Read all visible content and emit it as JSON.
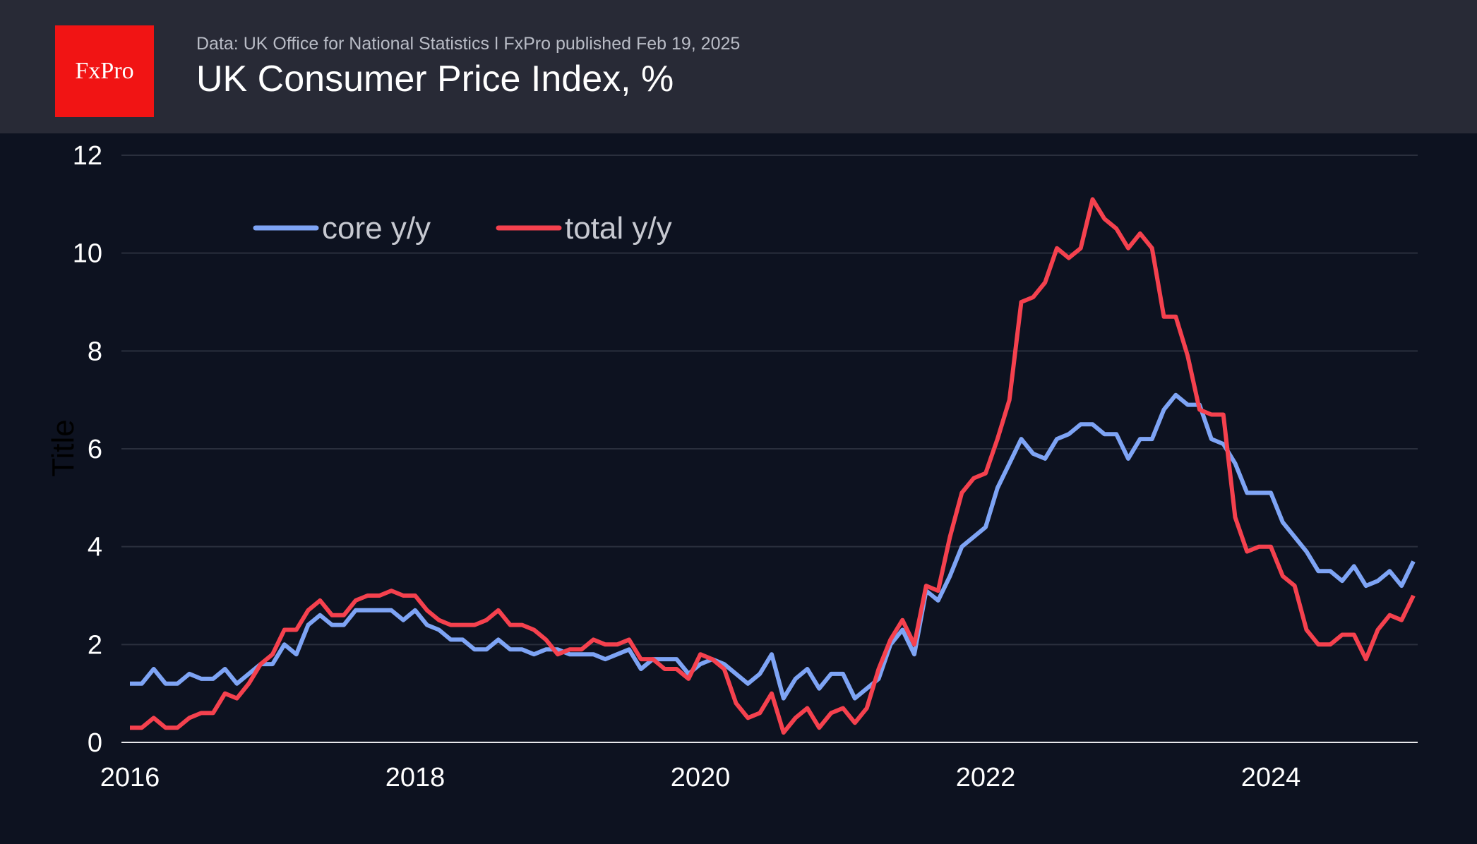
{
  "header": {
    "logo": "FxPro",
    "subtitle": "Data: UK Office for National Statistics ǀ FxPro published Feb 19, 2025",
    "title": "UK Consumer Price Index, %"
  },
  "chart_data": {
    "type": "line",
    "title": "UK Consumer Price Index, %",
    "ylabel": "Title",
    "xlabel": "",
    "x_start": "2016-01",
    "x_end": "2025-01",
    "x_frequency": "monthly",
    "xticks": [
      "2016",
      "2018",
      "2020",
      "2022",
      "2024"
    ],
    "yticks": [
      0,
      2,
      4,
      6,
      8,
      10,
      12
    ],
    "ylim": [
      0,
      12
    ],
    "grid": true,
    "legend_placement": "top-left",
    "series": [
      {
        "name": "core y/y",
        "color": "#7ea4f5",
        "values": [
          1.2,
          1.2,
          1.5,
          1.2,
          1.2,
          1.4,
          1.3,
          1.3,
          1.5,
          1.2,
          1.4,
          1.6,
          1.6,
          2.0,
          1.8,
          2.4,
          2.6,
          2.4,
          2.4,
          2.7,
          2.7,
          2.7,
          2.7,
          2.5,
          2.7,
          2.4,
          2.3,
          2.1,
          2.1,
          1.9,
          1.9,
          2.1,
          1.9,
          1.9,
          1.8,
          1.9,
          1.9,
          1.8,
          1.8,
          1.8,
          1.7,
          1.8,
          1.9,
          1.5,
          1.7,
          1.7,
          1.7,
          1.4,
          1.6,
          1.7,
          1.6,
          1.4,
          1.2,
          1.4,
          1.8,
          0.9,
          1.3,
          1.5,
          1.1,
          1.4,
          1.4,
          0.9,
          1.1,
          1.3,
          2.0,
          2.3,
          1.8,
          3.1,
          2.9,
          3.4,
          4.0,
          4.2,
          4.4,
          5.2,
          5.7,
          6.2,
          5.9,
          5.8,
          6.2,
          6.3,
          6.5,
          6.5,
          6.3,
          6.3,
          5.8,
          6.2,
          6.2,
          6.8,
          7.1,
          6.9,
          6.9,
          6.2,
          6.1,
          5.7,
          5.1,
          5.1,
          5.1,
          4.5,
          4.2,
          3.9,
          3.5,
          3.5,
          3.3,
          3.6,
          3.2,
          3.3,
          3.5,
          3.2,
          3.7
        ]
      },
      {
        "name": "total y/y",
        "color": "#f5414e",
        "values": [
          0.3,
          0.3,
          0.5,
          0.3,
          0.3,
          0.5,
          0.6,
          0.6,
          1.0,
          0.9,
          1.2,
          1.6,
          1.8,
          2.3,
          2.3,
          2.7,
          2.9,
          2.6,
          2.6,
          2.9,
          3.0,
          3.0,
          3.1,
          3.0,
          3.0,
          2.7,
          2.5,
          2.4,
          2.4,
          2.4,
          2.5,
          2.7,
          2.4,
          2.4,
          2.3,
          2.1,
          1.8,
          1.9,
          1.9,
          2.1,
          2.0,
          2.0,
          2.1,
          1.7,
          1.7,
          1.5,
          1.5,
          1.3,
          1.8,
          1.7,
          1.5,
          0.8,
          0.5,
          0.6,
          1.0,
          0.2,
          0.5,
          0.7,
          0.3,
          0.6,
          0.7,
          0.4,
          0.7,
          1.5,
          2.1,
          2.5,
          2.0,
          3.2,
          3.1,
          4.2,
          5.1,
          5.4,
          5.5,
          6.2,
          7.0,
          9.0,
          9.1,
          9.4,
          10.1,
          9.9,
          10.1,
          11.1,
          10.7,
          10.5,
          10.1,
          10.4,
          10.1,
          8.7,
          8.7,
          7.9,
          6.8,
          6.7,
          6.7,
          4.6,
          3.9,
          4.0,
          4.0,
          3.4,
          3.2,
          2.3,
          2.0,
          2.0,
          2.2,
          2.2,
          1.7,
          2.3,
          2.6,
          2.5,
          3.0
        ]
      }
    ]
  }
}
